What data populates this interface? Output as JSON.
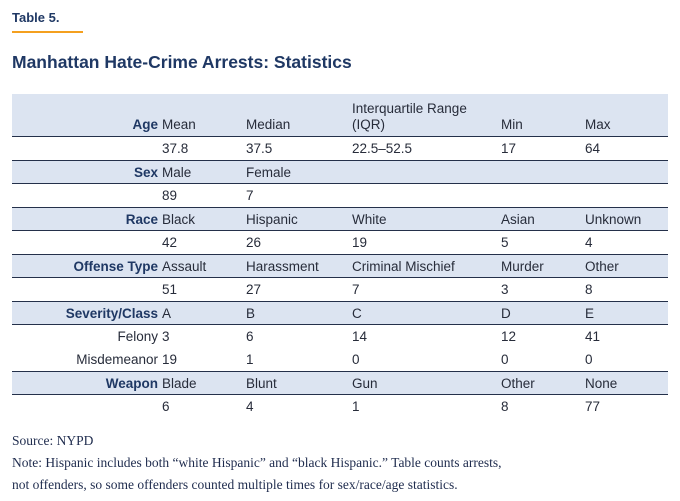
{
  "header": {
    "table_label": "Table 5.",
    "title": "Manhattan Hate-Crime Arrests: Statistics"
  },
  "table": {
    "rows": [
      {
        "type": "header",
        "tall": true,
        "cells": [
          "Age",
          "Mean",
          "Median",
          "Interquartile Range (IQR)",
          "Min",
          "Max"
        ]
      },
      {
        "type": "data",
        "cells": [
          "",
          "37.8",
          "37.5",
          "22.5–52.5",
          "17",
          "64"
        ]
      },
      {
        "type": "header",
        "cells": [
          "Sex",
          "Male",
          "Female",
          "",
          "",
          ""
        ]
      },
      {
        "type": "data",
        "cells": [
          "",
          "89",
          "7",
          "",
          "",
          ""
        ]
      },
      {
        "type": "header",
        "cells": [
          "Race",
          "Black",
          "Hispanic",
          "White",
          "Asian",
          "Unknown"
        ]
      },
      {
        "type": "data",
        "cells": [
          "",
          "42",
          "26",
          "19",
          "5",
          "4"
        ]
      },
      {
        "type": "header",
        "cells": [
          "Offense Type",
          "Assault",
          "Harassment",
          "Criminal Mischief",
          "Murder",
          "Other"
        ]
      },
      {
        "type": "data",
        "cells": [
          "",
          "51",
          "27",
          "7",
          "3",
          "8"
        ]
      },
      {
        "type": "header",
        "cells": [
          "Severity/Class",
          "A",
          "B",
          "C",
          "D",
          "E"
        ]
      },
      {
        "type": "data",
        "no_bottom_border": true,
        "cells": [
          "Felony",
          "3",
          "6",
          "14",
          "12",
          "41"
        ]
      },
      {
        "type": "data",
        "cells": [
          "Misdemeanor",
          "19",
          "1",
          "0",
          "0",
          "0"
        ]
      },
      {
        "type": "header",
        "cells": [
          "Weapon",
          "Blade",
          "Blunt",
          "Gun",
          "Other",
          "None"
        ]
      },
      {
        "type": "data",
        "no_bottom_border": true,
        "cells": [
          "",
          "6",
          "4",
          "1",
          "8",
          "77"
        ]
      }
    ]
  },
  "footer": {
    "source": "Source: NYPD",
    "note_lines": [
      "Note: Hispanic includes both “white Hispanic” and “black Hispanic.” Table counts arrests,",
      "not offenders, so some offenders counted multiple times for sex/race/age statistics."
    ]
  },
  "colors": {
    "accent_orange": "#F4A01F",
    "heading_navy": "#1F3864",
    "band_blue": "#DCE4F1",
    "rule_navy": "#24304A",
    "body_text": "#272C3A"
  },
  "chart_data": {
    "type": "table",
    "title": "Manhattan Hate-Crime Arrests: Statistics",
    "groups": [
      {
        "category": "Age",
        "stats": {
          "Mean": 37.8,
          "Median": 37.5,
          "Interquartile Range (IQR)": "22.5–52.5",
          "Min": 17,
          "Max": 64
        }
      },
      {
        "category": "Sex",
        "counts": {
          "Male": 89,
          "Female": 7
        }
      },
      {
        "category": "Race",
        "counts": {
          "Black": 42,
          "Hispanic": 26,
          "White": 19,
          "Asian": 5,
          "Unknown": 4
        }
      },
      {
        "category": "Offense Type",
        "counts": {
          "Assault": 51,
          "Harassment": 27,
          "Criminal Mischief": 7,
          "Murder": 3,
          "Other": 8
        }
      },
      {
        "category": "Severity/Class",
        "classes": [
          "A",
          "B",
          "C",
          "D",
          "E"
        ],
        "series": [
          {
            "name": "Felony",
            "values": [
              3,
              6,
              14,
              12,
              41
            ]
          },
          {
            "name": "Misdemeanor",
            "values": [
              19,
              1,
              0,
              0,
              0
            ]
          }
        ]
      },
      {
        "category": "Weapon",
        "counts": {
          "Blade": 6,
          "Blunt": 4,
          "Gun": 1,
          "Other": 8,
          "None": 77
        }
      }
    ],
    "source": "NYPD"
  }
}
